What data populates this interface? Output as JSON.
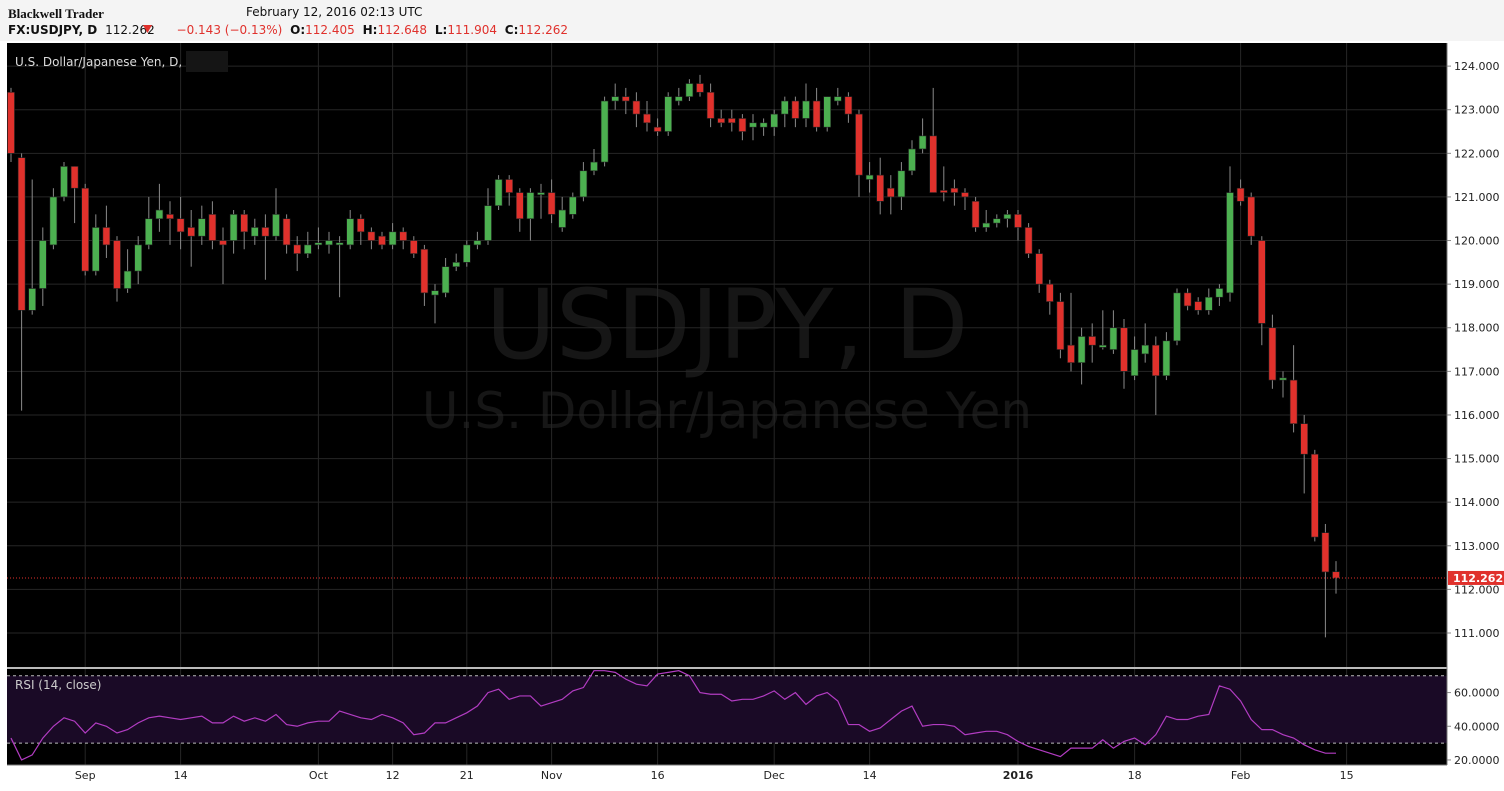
{
  "header": {
    "brand": "Blackwell Trader",
    "datetime": "February 12, 2016 02:13 UTC",
    "symbol": "FX:USDJPY, D",
    "last": "112.262",
    "change": "−0.143 (−0.13%)",
    "ohlc": [
      {
        "label": "O:",
        "value": "112.405"
      },
      {
        "label": "H:",
        "value": "112.648"
      },
      {
        "label": "L:",
        "value": "111.904"
      },
      {
        "label": "C:",
        "value": "112.262"
      }
    ]
  },
  "chart_data": [
    {
      "type": "candlestick",
      "legend": "U.S. Dollar/Japanese Yen, D,",
      "watermark": [
        "USDJPY, D",
        "U.S. Dollar/Japanese Yen"
      ],
      "up_color": "#4cb050",
      "down_color": "#e0312c",
      "grid": true,
      "categories": [
        null,
        null,
        null,
        null,
        null,
        null,
        null,
        "Sep",
        null,
        null,
        null,
        null,
        null,
        null,
        null,
        null,
        "14",
        null,
        null,
        null,
        null,
        null,
        null,
        null,
        null,
        null,
        null,
        null,
        null,
        "Oct",
        null,
        null,
        null,
        null,
        null,
        null,
        "12",
        null,
        null,
        null,
        null,
        null,
        null,
        "21",
        null,
        null,
        null,
        null,
        null,
        null,
        null,
        "Nov",
        null,
        null,
        null,
        null,
        null,
        null,
        null,
        null,
        null,
        "16",
        null,
        null,
        null,
        null,
        null,
        null,
        null,
        null,
        null,
        null,
        "Dec",
        null,
        null,
        null,
        null,
        null,
        null,
        null,
        null,
        "14",
        null,
        null,
        null,
        null,
        null,
        null,
        null,
        null,
        null,
        null,
        null,
        null,
        null,
        "2016",
        null,
        null,
        null,
        null,
        null,
        null,
        null,
        null,
        null,
        null,
        "18",
        null,
        null,
        null,
        null,
        null,
        null,
        null,
        null,
        null,
        "Feb",
        null,
        null,
        null,
        null,
        null,
        null,
        null,
        null,
        null,
        "15",
        null,
        null,
        null,
        null,
        null,
        null,
        null,
        null,
        null
      ],
      "open": [
        123.4,
        121.9,
        118.4,
        118.9,
        119.9,
        121.0,
        121.7,
        121.2,
        119.3,
        120.3,
        120.0,
        118.9,
        119.3,
        119.9,
        120.5,
        120.6,
        120.5,
        120.3,
        120.1,
        120.6,
        120.0,
        120.0,
        120.6,
        120.1,
        120.3,
        120.1,
        120.5,
        119.9,
        119.7,
        119.9,
        119.9,
        119.9,
        119.9,
        120.5,
        120.2,
        120.1,
        119.9,
        120.2,
        120.0,
        119.8,
        118.75,
        118.8,
        119.4,
        119.5,
        119.9,
        120.0,
        120.8,
        121.4,
        121.1,
        120.5,
        121.05,
        121.1,
        120.3,
        120.6,
        121.0,
        121.6,
        121.8,
        123.2,
        123.3,
        123.2,
        122.9,
        122.6,
        122.5,
        123.2,
        123.3,
        123.6,
        123.4,
        122.8,
        122.8,
        122.8,
        122.6,
        122.6,
        122.6,
        122.9,
        123.2,
        122.8,
        123.2,
        122.6,
        123.2,
        123.3,
        122.9,
        121.4,
        121.5,
        121.2,
        121.0,
        121.6,
        122.1,
        122.4,
        121.15,
        121.2,
        121.1,
        120.9,
        120.3,
        120.4,
        120.5,
        120.6,
        120.3,
        119.7,
        119.0,
        118.6,
        117.6,
        117.2,
        117.8,
        117.55,
        117.5,
        118.0,
        116.9,
        117.4,
        117.6,
        116.9,
        117.7,
        118.8,
        118.6,
        118.4,
        118.7,
        118.8,
        121.2,
        121.0,
        120.0,
        118.0,
        116.8,
        116.8,
        115.8,
        115.1,
        113.3,
        112.405,
        null,
        null,
        null,
        null,
        null,
        null,
        null,
        null,
        null,
        null
      ],
      "high": [
        123.5,
        122.0,
        121.4,
        120.3,
        121.2,
        121.8,
        121.7,
        121.3,
        120.6,
        120.8,
        120.1,
        119.8,
        120.1,
        121.0,
        121.3,
        120.9,
        121.0,
        120.7,
        120.8,
        120.9,
        120.3,
        120.7,
        120.7,
        120.5,
        120.6,
        121.2,
        120.6,
        120.1,
        120.2,
        120.3,
        120.2,
        120.1,
        120.7,
        120.6,
        120.3,
        120.2,
        120.4,
        120.3,
        120.1,
        119.9,
        119.0,
        119.6,
        119.7,
        120.0,
        120.2,
        121.2,
        121.5,
        121.5,
        121.2,
        121.2,
        121.3,
        121.4,
        121.0,
        121.1,
        121.8,
        122.1,
        123.3,
        123.6,
        123.5,
        123.4,
        123.2,
        122.8,
        123.4,
        123.5,
        123.7,
        123.8,
        123.6,
        123.0,
        123.0,
        122.9,
        122.9,
        122.8,
        123.0,
        123.3,
        123.3,
        123.6,
        123.5,
        123.3,
        123.5,
        123.4,
        123.0,
        121.8,
        121.9,
        121.5,
        121.8,
        122.3,
        122.8,
        123.5,
        121.7,
        121.4,
        121.2,
        121.0,
        120.7,
        120.6,
        120.7,
        120.7,
        120.4,
        119.8,
        119.1,
        118.8,
        118.8,
        118.0,
        118.1,
        118.4,
        118.4,
        118.2,
        117.8,
        118.1,
        117.8,
        117.9,
        118.9,
        118.9,
        118.7,
        118.9,
        119.0,
        121.7,
        121.4,
        121.1,
        120.1,
        118.3,
        117.0,
        117.6,
        116.0,
        115.2,
        113.5,
        112.648,
        null,
        null,
        null,
        null,
        null,
        null,
        null,
        null,
        null,
        null
      ],
      "low": [
        121.8,
        116.1,
        118.3,
        118.5,
        119.8,
        120.9,
        120.4,
        119.2,
        119.2,
        119.6,
        118.6,
        118.8,
        119.0,
        119.8,
        120.2,
        119.9,
        119.8,
        119.4,
        119.9,
        119.8,
        119.0,
        119.7,
        119.8,
        119.9,
        119.1,
        120.0,
        119.7,
        119.3,
        119.6,
        119.8,
        119.7,
        118.7,
        119.8,
        119.9,
        119.8,
        119.8,
        119.8,
        119.8,
        119.6,
        118.5,
        118.1,
        118.7,
        119.3,
        119.4,
        119.8,
        119.9,
        120.7,
        120.8,
        120.2,
        120.0,
        120.5,
        120.4,
        120.2,
        120.5,
        120.9,
        121.5,
        121.7,
        123.0,
        122.9,
        122.6,
        122.5,
        122.4,
        122.4,
        123.1,
        123.2,
        123.3,
        122.6,
        122.6,
        122.5,
        122.3,
        122.3,
        122.4,
        122.4,
        122.6,
        122.6,
        122.6,
        122.5,
        122.5,
        123.1,
        122.7,
        121.0,
        121.1,
        120.6,
        120.6,
        120.7,
        121.5,
        122.0,
        121.1,
        120.9,
        120.8,
        120.7,
        120.2,
        120.2,
        120.3,
        120.3,
        120.0,
        119.6,
        118.8,
        118.3,
        117.3,
        117.0,
        116.7,
        117.2,
        117.5,
        117.4,
        116.6,
        116.8,
        117.2,
        116.0,
        116.8,
        117.6,
        118.4,
        118.3,
        118.3,
        118.5,
        118.6,
        120.8,
        119.9,
        117.6,
        116.6,
        116.4,
        115.6,
        114.2,
        113.1,
        110.9,
        111.904,
        null,
        null,
        null,
        null,
        null,
        null,
        null,
        null,
        null,
        null
      ],
      "close": [
        122.0,
        118.4,
        118.9,
        120.0,
        121.0,
        121.7,
        121.2,
        119.3,
        120.3,
        119.9,
        118.9,
        119.3,
        119.9,
        120.5,
        120.7,
        120.5,
        120.2,
        120.1,
        120.5,
        120.0,
        119.9,
        120.6,
        120.2,
        120.3,
        120.1,
        120.6,
        119.9,
        119.7,
        119.9,
        119.95,
        120.0,
        119.95,
        120.5,
        120.2,
        120.0,
        119.9,
        120.2,
        120.0,
        119.7,
        118.8,
        118.85,
        119.4,
        119.5,
        119.9,
        120.0,
        120.8,
        121.4,
        121.1,
        120.5,
        121.1,
        121.1,
        120.6,
        120.7,
        121.0,
        121.6,
        121.8,
        123.2,
        123.3,
        123.2,
        122.9,
        122.7,
        122.5,
        123.3,
        123.3,
        123.6,
        123.4,
        122.8,
        122.7,
        122.7,
        122.5,
        122.7,
        122.7,
        122.9,
        123.2,
        122.8,
        123.2,
        122.6,
        123.3,
        123.3,
        122.9,
        121.5,
        121.5,
        120.9,
        121.0,
        121.6,
        122.1,
        122.4,
        121.1,
        121.1,
        121.1,
        121.0,
        120.3,
        120.4,
        120.5,
        120.6,
        120.3,
        119.7,
        119.0,
        118.6,
        117.5,
        117.2,
        117.8,
        117.6,
        117.6,
        118.0,
        117.0,
        117.5,
        117.6,
        116.9,
        117.7,
        118.8,
        118.5,
        118.4,
        118.7,
        118.9,
        121.1,
        120.9,
        120.1,
        118.1,
        116.8,
        116.85,
        115.8,
        115.1,
        113.2,
        112.4,
        112.262,
        null,
        null,
        null,
        null,
        null,
        null,
        null,
        null,
        null,
        null
      ],
      "last_price": {
        "value": 112.262,
        "label": "112.262"
      },
      "last_color": "#e0312c",
      "ylim": [
        110.22,
        124.53
      ],
      "yticks": [
        {
          "value": 111,
          "label": "111.000"
        },
        {
          "value": 112,
          "label": "112.000"
        },
        {
          "value": 113,
          "label": "113.000"
        },
        {
          "value": 114,
          "label": "114.000"
        },
        {
          "value": 115,
          "label": "115.000"
        },
        {
          "value": 116,
          "label": "116.000"
        },
        {
          "value": 117,
          "label": "117.000"
        },
        {
          "value": 118,
          "label": "118.000"
        },
        {
          "value": 119,
          "label": "119.000"
        },
        {
          "value": 120,
          "label": "120.000"
        },
        {
          "value": 121,
          "label": "121.000"
        },
        {
          "value": 122,
          "label": "122.000"
        },
        {
          "value": 123,
          "label": "123.000"
        },
        {
          "value": 124,
          "label": "124.000"
        }
      ]
    },
    {
      "type": "line",
      "legend": "RSI (14, close)",
      "color": "#b23cc2",
      "band_color": "#1a0a26",
      "levels": [
        30,
        70
      ],
      "values": [
        33,
        20,
        23,
        33,
        40,
        45,
        43,
        36,
        42,
        40,
        36,
        38,
        42,
        45,
        46,
        45,
        44,
        45,
        46,
        42,
        42,
        46,
        43,
        45,
        43,
        47,
        41,
        40,
        42,
        43,
        43,
        49,
        47,
        45,
        44,
        47,
        45,
        42,
        35,
        36,
        42,
        42,
        45,
        48,
        52,
        60,
        62,
        56,
        58,
        58,
        52,
        54,
        56,
        61,
        63,
        73,
        73,
        72,
        68,
        65,
        64,
        71,
        72,
        73,
        70,
        60,
        59,
        59,
        55,
        56,
        56,
        58,
        61,
        56,
        60,
        53,
        58,
        60,
        55,
        41,
        41,
        37,
        39,
        44,
        49,
        52,
        40,
        41,
        41,
        40,
        35,
        36,
        37,
        37,
        35,
        31,
        28,
        26,
        24,
        22,
        27,
        27,
        27,
        32,
        27,
        31,
        33,
        29,
        35,
        46,
        44,
        44,
        46,
        47,
        64,
        62,
        55,
        44,
        38,
        38,
        35,
        33,
        29,
        26,
        24,
        24,
        null,
        null,
        null,
        null,
        null,
        null,
        null,
        null,
        null,
        null
      ],
      "ylim": [
        17,
        74
      ],
      "yticks": [
        {
          "value": 20,
          "label": "20.0000"
        },
        {
          "value": 40,
          "label": "40.0000"
        },
        {
          "value": 60,
          "label": "60.0000"
        }
      ]
    }
  ]
}
